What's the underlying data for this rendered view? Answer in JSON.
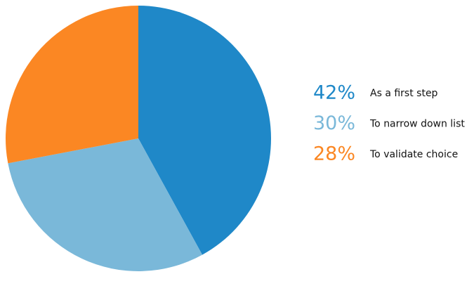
{
  "chart_data": {
    "type": "pie",
    "categories": [
      "As a first step",
      "To narrow down list",
      "To validate choice"
    ],
    "values": [
      42,
      30,
      28
    ],
    "value_labels": [
      "42%",
      "30%",
      "28%"
    ],
    "colors": [
      "#1f88c8",
      "#7ab8d9",
      "#fb8723"
    ]
  }
}
